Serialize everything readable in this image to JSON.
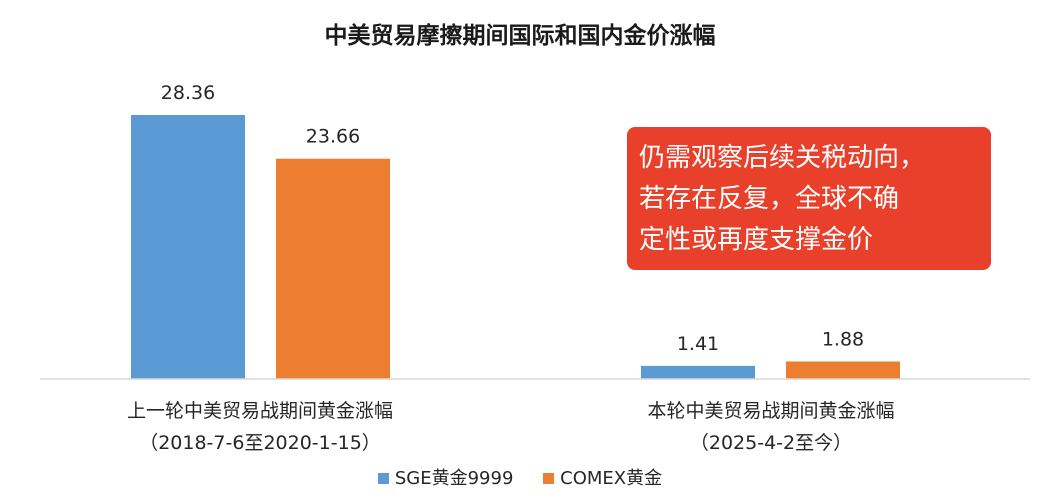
{
  "chart_data": {
    "type": "bar",
    "title": "中美贸易摩擦期间国际和国内金价涨幅",
    "categories": [
      {
        "line1": "上一轮中美贸易战期间黄金涨幅",
        "line2": "（2018-7-6至2020-1-15）"
      },
      {
        "line1": "本轮中美贸易战期间黄金涨幅",
        "line2": "（2025-4-2至今）"
      }
    ],
    "series": [
      {
        "name": "SGE黄金9999",
        "color": "#5b9bd5",
        "values": [
          28.36,
          1.41
        ],
        "labels": [
          "28.36",
          "1.41"
        ]
      },
      {
        "name": "COMEX黄金",
        "color": "#ed7d31",
        "values": [
          23.66,
          1.88
        ],
        "labels": [
          "23.66",
          "1.88"
        ]
      }
    ],
    "ylim": [
      0,
      30
    ],
    "grid": false,
    "legend_position": "bottom",
    "annotation": {
      "lines": [
        "仍需观察后续关税动向，",
        "若存在反复，全球不确",
        "定性或再度支撑金价"
      ],
      "background": "#e8402a",
      "text_color": "#ffffff"
    }
  }
}
